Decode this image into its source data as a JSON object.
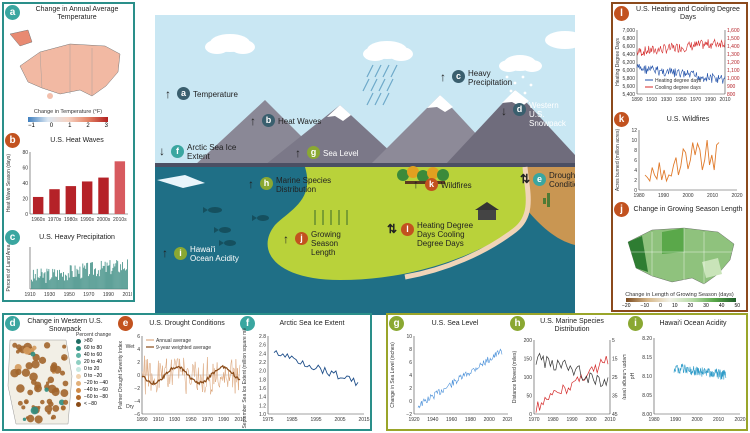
{
  "center": {
    "labels": {
      "a": {
        "badge": "a",
        "text": "Temperature",
        "dir": "up"
      },
      "b": {
        "badge": "b",
        "text": "Heat Waves",
        "dir": "up"
      },
      "c": {
        "badge": "c",
        "text": "Heavy Precipitation",
        "dir": "up"
      },
      "d": {
        "badge": "d",
        "text": "Western U.S. Snowpack",
        "dir": "down"
      },
      "e": {
        "badge": "e",
        "text": "Drought Conditions",
        "dir": "updown"
      },
      "f": {
        "badge": "f",
        "text": "Arctic Sea Ice Extent",
        "dir": "down"
      },
      "g": {
        "badge": "g",
        "text": "Sea Level",
        "dir": "up"
      },
      "h": {
        "badge": "h",
        "text": "Marine Species Distribution",
        "dir": "up"
      },
      "i": {
        "badge": "i",
        "text": "Hawai'i Ocean Acidity",
        "dir": "up"
      },
      "j": {
        "badge": "j",
        "text": "Growing Season Length",
        "dir": "up"
      },
      "k": {
        "badge": "k",
        "text": "Wildfires",
        "dir": "up"
      },
      "l": {
        "badge": "l",
        "text": "Heating Degree Days Cooling Degree Days",
        "dir": "updown"
      }
    }
  },
  "panel_a": {
    "badge": "a",
    "title": "Change in Annual Average Temperature",
    "legend_title": "Change in Temperature (°F)",
    "ticks": [
      "−1",
      "0",
      "1",
      "2",
      "3"
    ]
  },
  "panel_b": {
    "badge": "b",
    "title": "U.S. Heat Waves",
    "ylabel": "Heat Wave Season (days)",
    "chart_data": {
      "type": "bar",
      "categories": [
        "1960s",
        "1970s",
        "1980s",
        "1990s",
        "2000s",
        "2010s"
      ],
      "values": [
        22,
        32,
        36,
        42,
        47,
        68
      ],
      "ylim": [
        0,
        80
      ],
      "ticks": [
        "0",
        "20",
        "40",
        "60",
        "80"
      ]
    }
  },
  "panel_c": {
    "badge": "c",
    "title": "U.S. Heavy Precipitation",
    "ylabel": "Percent of Land Area",
    "xticks": [
      "1910",
      "1930",
      "1950",
      "1970",
      "1990",
      "2010"
    ]
  },
  "panel_d": {
    "badge": "d",
    "title": "Change in Western U.S. Snowpack",
    "legend_title": "Percent change",
    "legend": [
      ">80",
      "60 to 80",
      "40 to 60",
      "20 to 40",
      "0 to 20",
      "0 to −20",
      "−20 to −40",
      "−40 to −60",
      "−60 to −80",
      "< −80"
    ]
  },
  "panel_e": {
    "badge": "e",
    "title": "U.S. Drought Conditions",
    "ylabel": "Palmer Drought Severity Index",
    "wet": "Wet",
    "dry": "Dry",
    "legend": [
      "Annual average",
      "9-year weighted average"
    ],
    "yticks": [
      "6",
      "4",
      "2",
      "0",
      "−2",
      "−4",
      "−6"
    ],
    "xticks": [
      "1890",
      "1910",
      "1930",
      "1950",
      "1970",
      "1990",
      "2010"
    ]
  },
  "panel_f": {
    "badge": "f",
    "title": "Arctic Sea Ice Extent",
    "ylabel": "September Sea Ice Extent (million square miles)",
    "yticks": [
      "2.8",
      "2.6",
      "2.4",
      "2.2",
      "2.0",
      "1.8",
      "1.6",
      "1.4",
      "1.2",
      "1.0"
    ],
    "xticks": [
      "1975",
      "1985",
      "1995",
      "2005",
      "2015"
    ]
  },
  "panel_g": {
    "badge": "g",
    "title": "U.S. Sea Level",
    "ylabel": "Change in Sea Level (inches)",
    "yticks": [
      "10",
      "8",
      "6",
      "4",
      "2",
      "0",
      "−2"
    ],
    "xticks": [
      "1920",
      "1940",
      "1960",
      "1980",
      "2000",
      "2020"
    ]
  },
  "panel_h": {
    "badge": "h",
    "title": "U.S. Marine Species Distribution",
    "ylabel_left": "Distance Moved (miles)",
    "ylabel_right": "Depth Change (feet)",
    "yticks_left": [
      "200",
      "150",
      "100",
      "50",
      "0"
    ],
    "yticks_right": [
      "5",
      "15",
      "25",
      "35",
      "45"
    ],
    "xticks": [
      "1970",
      "1980",
      "1990",
      "2000",
      "2010"
    ]
  },
  "panel_i": {
    "badge": "i",
    "title": "Hawai'i Ocean Acidity",
    "ylabel": "pH",
    "yticks": [
      "8.20",
      "8.15",
      "8.10",
      "8.05",
      "8.00"
    ],
    "xticks": [
      "1980",
      "1990",
      "2000",
      "2010",
      "2020"
    ]
  },
  "panel_l": {
    "badge": "l",
    "title": "U.S. Heating and Cooling Degree Days",
    "ylabel_left": "Heating Degree Days",
    "ylabel_right": "Cooling Degree Days",
    "legend": [
      "Heating degree days",
      "Cooling degree days"
    ],
    "yticks_left": [
      "7,000",
      "6,800",
      "6,600",
      "6,400",
      "6,200",
      "6,000",
      "5,800",
      "5,600",
      "5,400"
    ],
    "yticks_right": [
      "1,600",
      "1,500",
      "1,400",
      "1,300",
      "1,200",
      "1,100",
      "1,000",
      "900",
      "800"
    ],
    "xticks": [
      "1890",
      "1910",
      "1930",
      "1950",
      "1970",
      "1990",
      "2010"
    ]
  },
  "panel_k": {
    "badge": "k",
    "title": "U.S. Wildfires",
    "ylabel": "Acres burned (million acres)",
    "yticks": [
      "12",
      "10",
      "8",
      "6",
      "4",
      "2",
      "0"
    ],
    "xticks": [
      "1980",
      "1990",
      "2000",
      "2010",
      "2020"
    ]
  },
  "panel_j": {
    "badge": "j",
    "title": "Change in Growing Season Length",
    "legend_title": "Change in Length of Growing Season (days)",
    "ticks": [
      "−20",
      "−10",
      "0",
      "10",
      "20",
      "30",
      "40",
      "50"
    ]
  },
  "colors": {
    "teal": "#2a8f8a",
    "brown": "#8b4a1c",
    "olive": "#9aa52a",
    "ocean": "#1f6f86",
    "land": "#b9d23a",
    "sky": "#c9e7f3",
    "red": "#b52228"
  }
}
